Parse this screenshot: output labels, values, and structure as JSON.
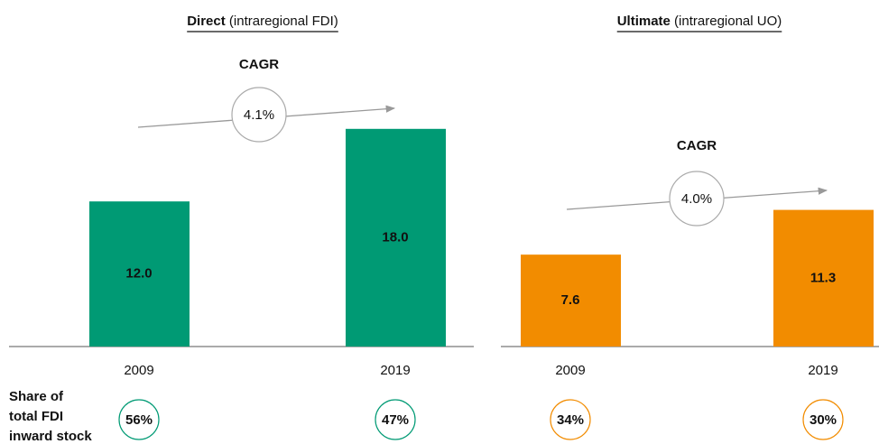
{
  "chart_data": [
    {
      "type": "bar",
      "title": "Direct",
      "subtitle": "(intraregional FDI)",
      "categories": [
        "2009",
        "2019"
      ],
      "values": [
        12.0,
        18.0
      ],
      "value_labels": [
        "12.0",
        "18.0"
      ],
      "color": "#009a74",
      "annotation": "CAGR",
      "cagr": {
        "value": 4.1,
        "label": "4.1%"
      },
      "shares": [
        {
          "value": 56,
          "label": "56%"
        },
        {
          "value": 47,
          "label": "47%"
        }
      ]
    },
    {
      "type": "bar",
      "title": "Ultimate",
      "subtitle": "(intraregional UO)",
      "categories": [
        "2009",
        "2019"
      ],
      "values": [
        7.6,
        11.3
      ],
      "value_labels": [
        "7.6",
        "11.3"
      ],
      "color": "#f28c00",
      "annotation": "CAGR",
      "cagr": {
        "value": 4.0,
        "label": "4.0%"
      },
      "shares": [
        {
          "value": 34,
          "label": "34%"
        },
        {
          "value": 30,
          "label": "30%"
        }
      ]
    }
  ],
  "row_label": [
    "Share of",
    "total FDI",
    "inward stock"
  ]
}
